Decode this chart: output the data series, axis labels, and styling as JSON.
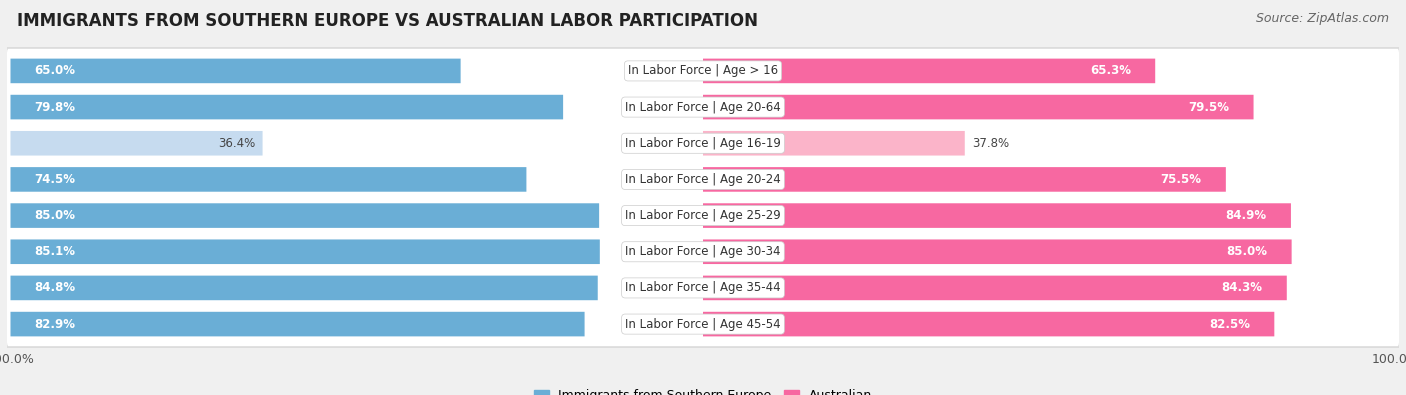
{
  "title": "IMMIGRANTS FROM SOUTHERN EUROPE VS AUSTRALIAN LABOR PARTICIPATION",
  "source": "Source: ZipAtlas.com",
  "categories": [
    "In Labor Force | Age > 16",
    "In Labor Force | Age 20-64",
    "In Labor Force | Age 16-19",
    "In Labor Force | Age 20-24",
    "In Labor Force | Age 25-29",
    "In Labor Force | Age 30-34",
    "In Labor Force | Age 35-44",
    "In Labor Force | Age 45-54"
  ],
  "immigrants_values": [
    65.0,
    79.8,
    36.4,
    74.5,
    85.0,
    85.1,
    84.8,
    82.9
  ],
  "australian_values": [
    65.3,
    79.5,
    37.8,
    75.5,
    84.9,
    85.0,
    84.3,
    82.5
  ],
  "immigrant_color": "#6aaed6",
  "immigrant_color_light": "#c6dbef",
  "australian_color": "#f768a1",
  "australian_color_light": "#fbb4c9",
  "label_immigrants": "Immigrants from Southern Europe",
  "label_australian": "Australian",
  "max_value": 100.0,
  "bg_color": "#f0f0f0",
  "row_bg_color": "#e8e8e8",
  "title_fontsize": 12,
  "source_fontsize": 9,
  "cat_fontsize": 8.5,
  "value_fontsize": 8.5,
  "legend_fontsize": 9
}
